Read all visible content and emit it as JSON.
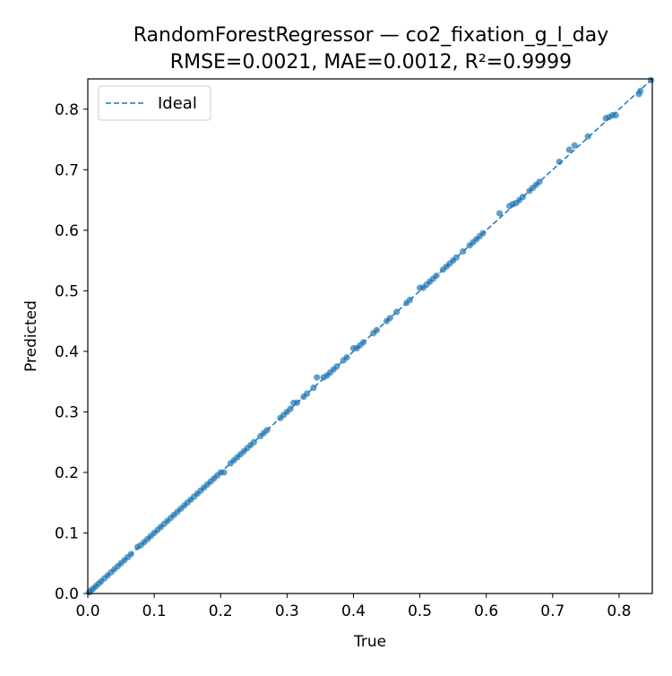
{
  "chart_data": {
    "type": "scatter",
    "title": "RandomForestRegressor — co2_fixation_g_l_day",
    "subtitle": "RMSE=0.0021, MAE=0.0012, R²=0.9999",
    "xlabel": "True",
    "ylabel": "Predicted",
    "xlim": [
      0.0,
      0.85
    ],
    "ylim": [
      0.0,
      0.85
    ],
    "xticks": [
      "0.0",
      "0.1",
      "0.2",
      "0.3",
      "0.4",
      "0.5",
      "0.6",
      "0.7",
      "0.8"
    ],
    "yticks": [
      "0.0",
      "0.1",
      "0.2",
      "0.3",
      "0.4",
      "0.5",
      "0.6",
      "0.7",
      "0.8"
    ],
    "grid": false,
    "legend": {
      "position": "top-left",
      "entries": [
        "Ideal"
      ]
    },
    "colors": {
      "points": "#1f77b4",
      "ideal_line": "#1f77b4"
    },
    "ideal_line": {
      "x": [
        0.0,
        0.85
      ],
      "y": [
        0.0,
        0.85
      ],
      "style": "dashed"
    },
    "series": [
      {
        "name": "",
        "x": [
          0.002,
          0.005,
          0.008,
          0.012,
          0.016,
          0.02,
          0.025,
          0.03,
          0.035,
          0.04,
          0.045,
          0.05,
          0.055,
          0.06,
          0.065,
          0.075,
          0.08,
          0.085,
          0.09,
          0.095,
          0.1,
          0.105,
          0.11,
          0.115,
          0.12,
          0.125,
          0.13,
          0.135,
          0.14,
          0.145,
          0.15,
          0.155,
          0.16,
          0.165,
          0.17,
          0.175,
          0.18,
          0.185,
          0.19,
          0.195,
          0.2,
          0.205,
          0.215,
          0.22,
          0.225,
          0.23,
          0.235,
          0.24,
          0.245,
          0.25,
          0.26,
          0.265,
          0.27,
          0.29,
          0.295,
          0.3,
          0.305,
          0.31,
          0.315,
          0.325,
          0.33,
          0.34,
          0.345,
          0.355,
          0.36,
          0.365,
          0.37,
          0.375,
          0.385,
          0.39,
          0.4,
          0.405,
          0.41,
          0.415,
          0.43,
          0.435,
          0.45,
          0.455,
          0.465,
          0.48,
          0.485,
          0.5,
          0.505,
          0.51,
          0.515,
          0.52,
          0.525,
          0.535,
          0.54,
          0.545,
          0.55,
          0.555,
          0.565,
          0.575,
          0.58,
          0.585,
          0.59,
          0.595,
          0.62,
          0.635,
          0.64,
          0.645,
          0.65,
          0.655,
          0.665,
          0.67,
          0.675,
          0.68,
          0.71,
          0.725,
          0.733,
          0.753,
          0.78,
          0.785,
          0.79,
          0.795,
          0.83,
          0.832,
          0.848
        ],
        "y": [
          0.002,
          0.005,
          0.008,
          0.012,
          0.016,
          0.02,
          0.025,
          0.03,
          0.035,
          0.04,
          0.045,
          0.05,
          0.055,
          0.06,
          0.065,
          0.077,
          0.08,
          0.085,
          0.09,
          0.095,
          0.1,
          0.105,
          0.11,
          0.115,
          0.12,
          0.125,
          0.13,
          0.135,
          0.14,
          0.145,
          0.15,
          0.155,
          0.16,
          0.165,
          0.17,
          0.175,
          0.18,
          0.185,
          0.19,
          0.195,
          0.2,
          0.2,
          0.215,
          0.22,
          0.225,
          0.23,
          0.235,
          0.24,
          0.245,
          0.25,
          0.26,
          0.265,
          0.27,
          0.29,
          0.295,
          0.3,
          0.305,
          0.315,
          0.315,
          0.325,
          0.33,
          0.34,
          0.357,
          0.357,
          0.36,
          0.365,
          0.37,
          0.375,
          0.385,
          0.39,
          0.405,
          0.405,
          0.41,
          0.415,
          0.43,
          0.435,
          0.45,
          0.455,
          0.465,
          0.48,
          0.485,
          0.505,
          0.505,
          0.51,
          0.515,
          0.52,
          0.525,
          0.535,
          0.54,
          0.545,
          0.55,
          0.555,
          0.565,
          0.575,
          0.58,
          0.585,
          0.59,
          0.595,
          0.628,
          0.64,
          0.643,
          0.645,
          0.65,
          0.655,
          0.665,
          0.67,
          0.675,
          0.68,
          0.713,
          0.733,
          0.74,
          0.755,
          0.785,
          0.787,
          0.79,
          0.79,
          0.825,
          0.83,
          0.848
        ]
      }
    ]
  }
}
